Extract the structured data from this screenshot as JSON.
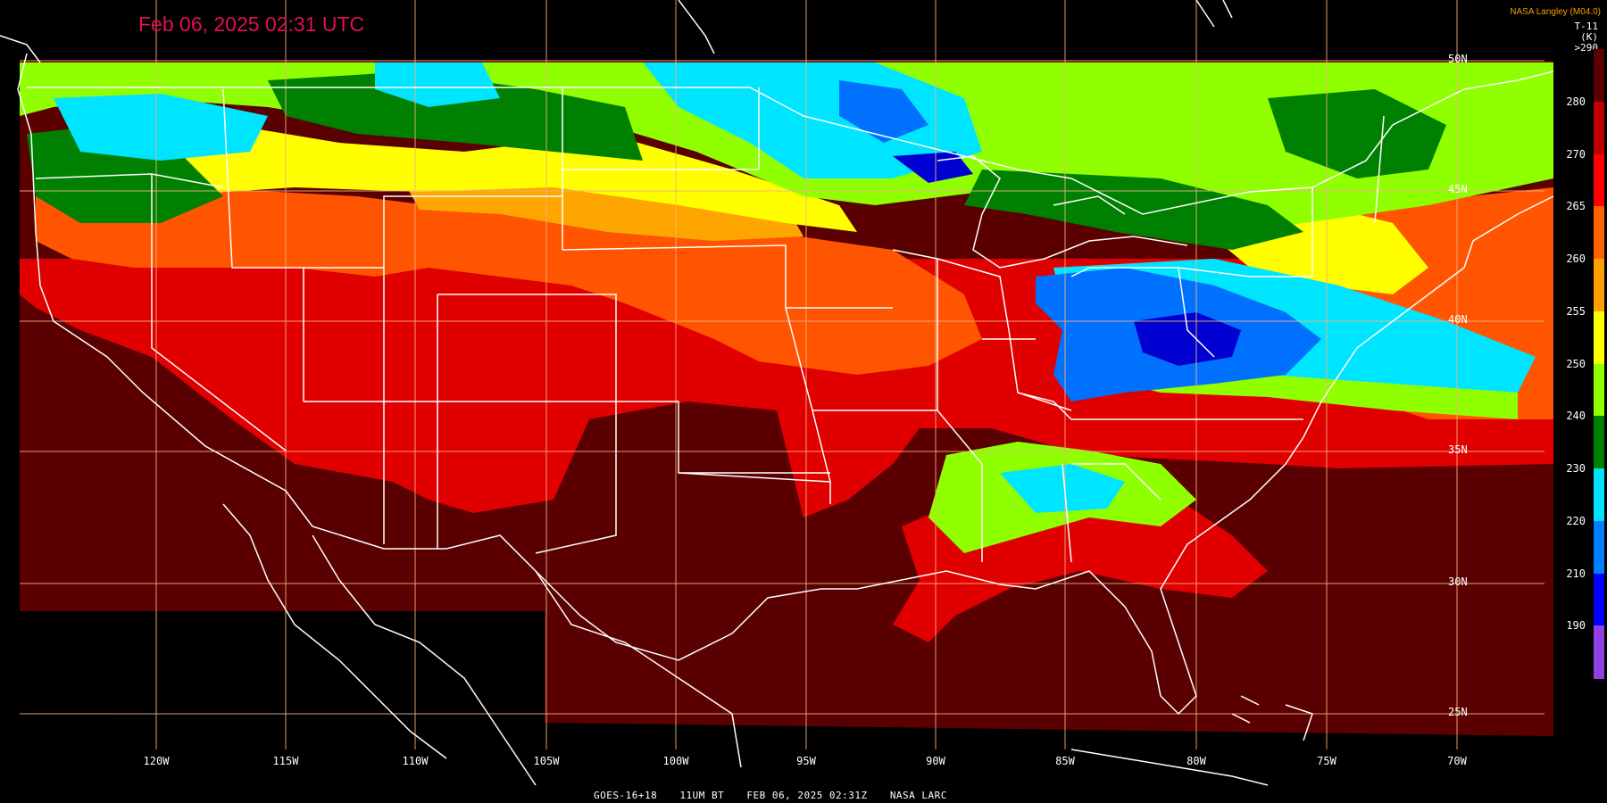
{
  "header": {
    "timestamp": "Feb 06, 2025 02:31 UTC",
    "credit": "NASA Langley (M04.0)",
    "product_line1": "T-11",
    "product_line2": "(K)"
  },
  "footer": {
    "satellite": "GOES-16+18",
    "channel": "11UM BT",
    "datetime": "FEB 06, 2025 02:31Z",
    "source": "NASA LARC"
  },
  "longitude_labels": [
    "120W",
    "115W",
    "110W",
    "105W",
    "100W",
    "95W",
    "90W",
    "85W",
    "80W",
    "75W",
    "70W"
  ],
  "latitude_labels": [
    "50N",
    "45N",
    "40N",
    "35N",
    "30N",
    "25N"
  ],
  "colorbar": {
    "top_label": ">290",
    "ticks": [
      "280",
      "270",
      "265",
      "260",
      "255",
      "250",
      "240",
      "230",
      "220",
      "210",
      "190"
    ],
    "colors": [
      "#5a0000",
      "#c00000",
      "#ff0000",
      "#ff6000",
      "#ffa000",
      "#ffff00",
      "#90ff00",
      "#008000",
      "#00e0ff",
      "#0080ff",
      "#0000ff",
      "#9040e0"
    ]
  },
  "map_colors": {
    "very_warm": "#5a0000",
    "warm": "#e00000",
    "mild": "#ff5500",
    "cool": "#ffa500",
    "yellow": "#ffff00",
    "lime": "#90ff00",
    "green": "#008000",
    "cyan": "#00e5ff",
    "blue": "#0070ff",
    "deep_blue": "#0000d0",
    "gridline": "#f0b080",
    "boundary": "#ffffff"
  }
}
